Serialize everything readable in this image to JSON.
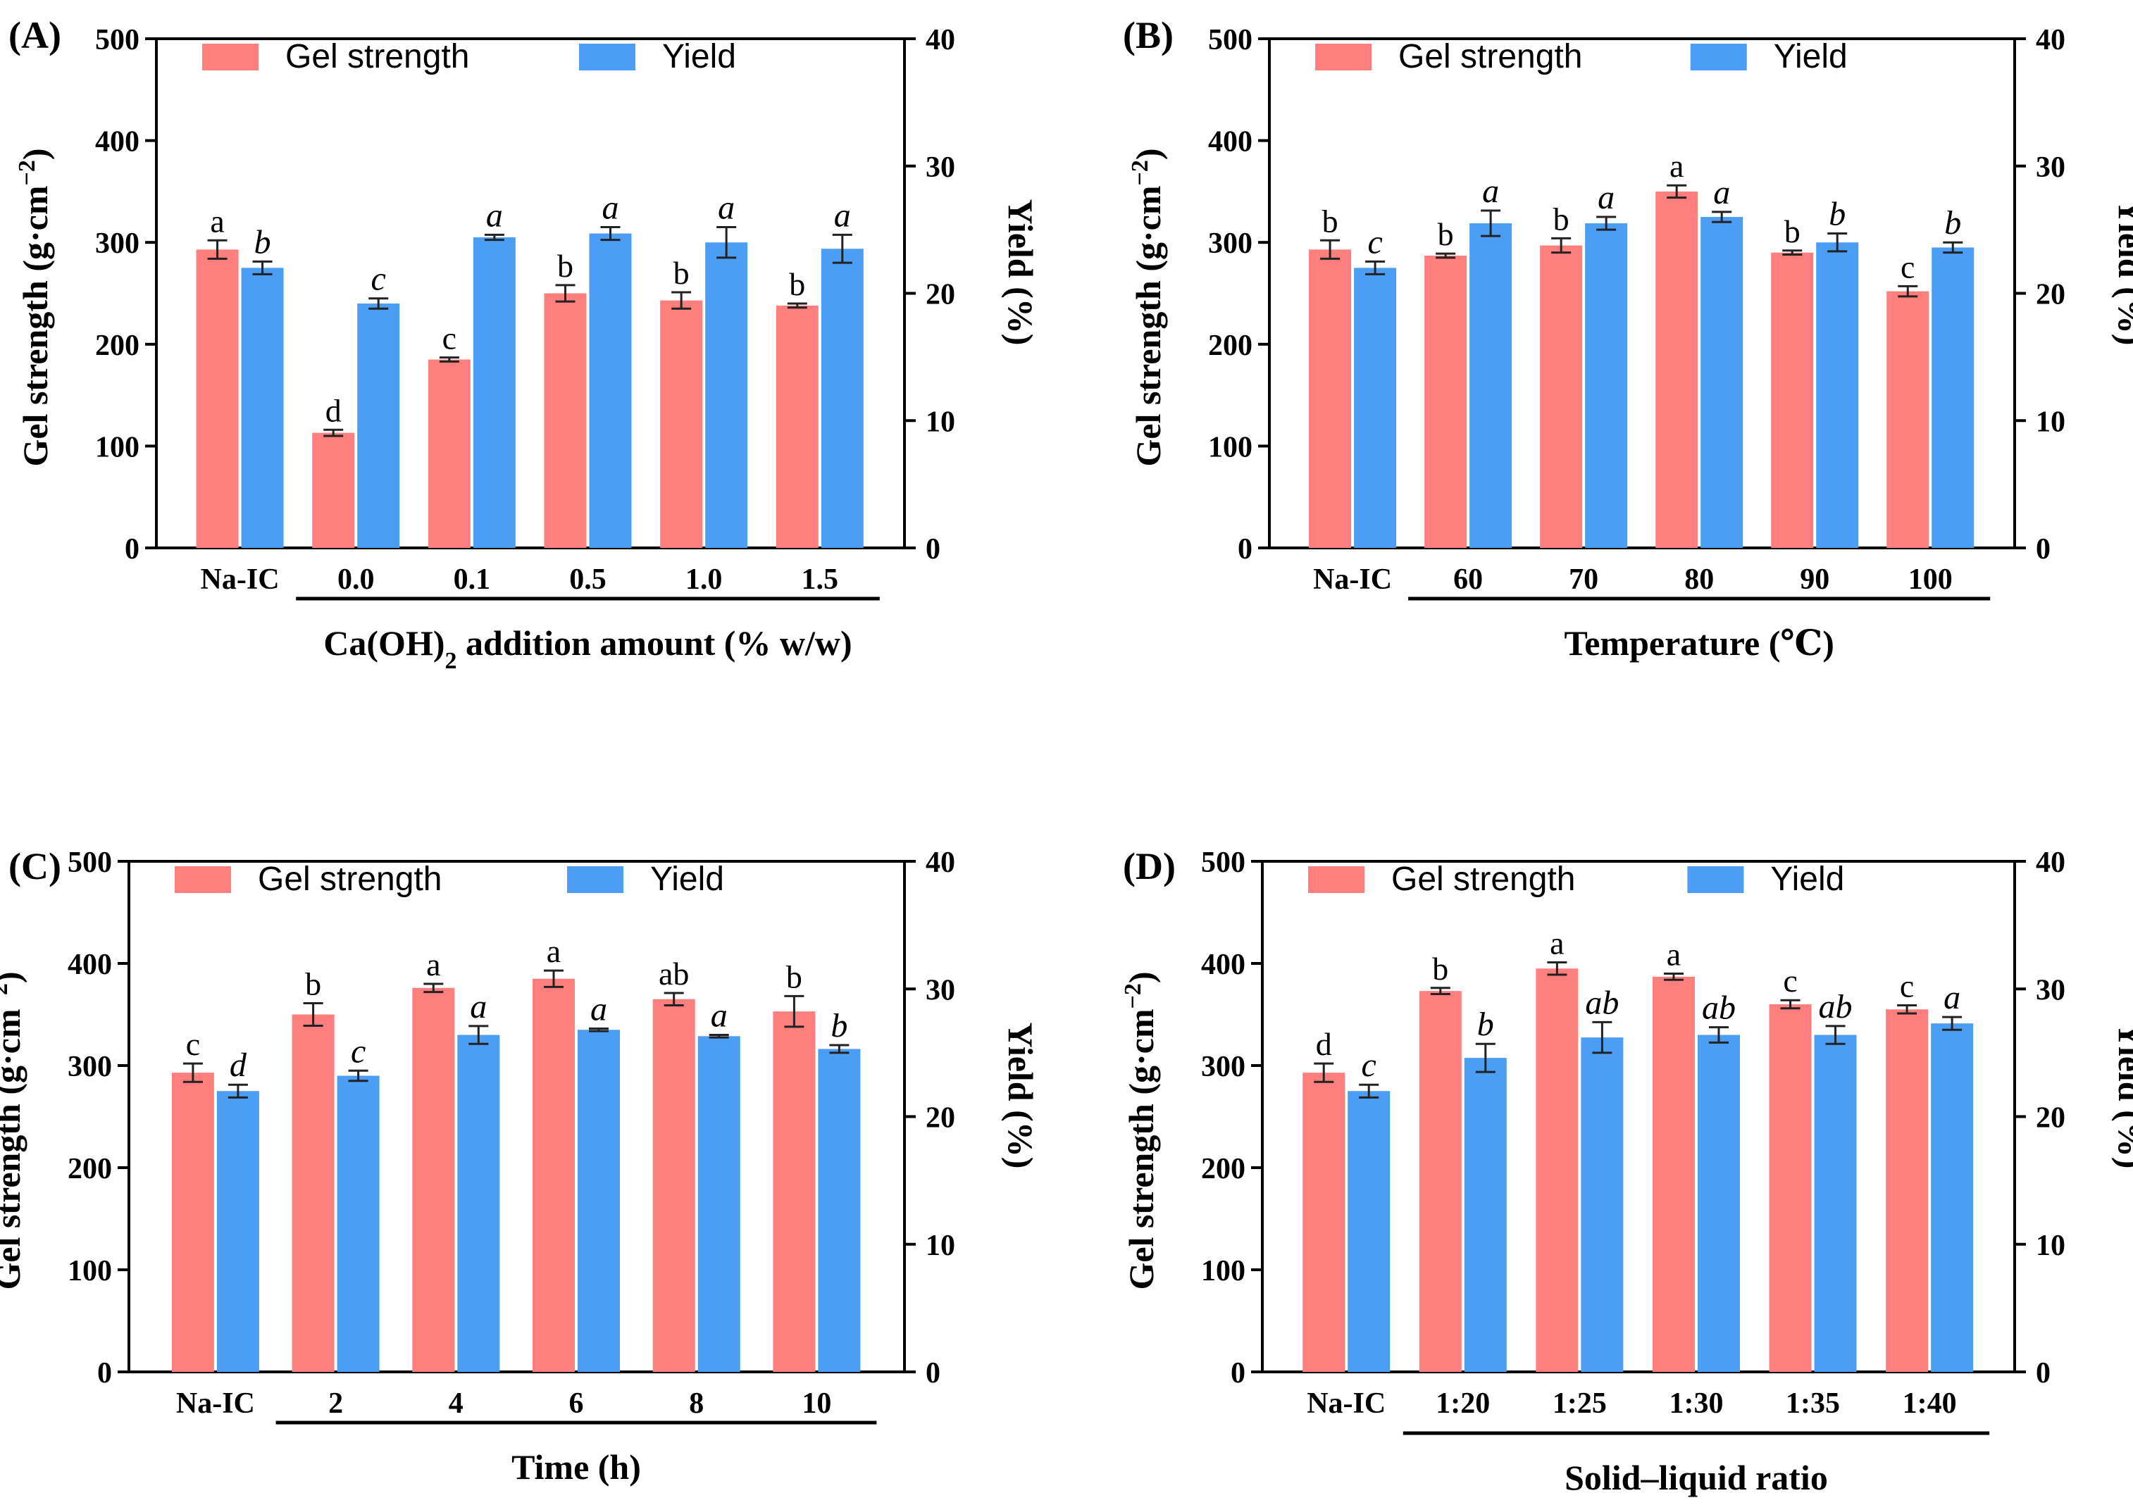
{
  "colors": {
    "gel": "#FF7F7F",
    "yield": "#4C9EF5",
    "axis": "#000000",
    "errorbar": "#222222"
  },
  "legend": {
    "gel_label": "Gel strength",
    "yield_label": "Yield"
  },
  "left_axis": {
    "label_main": "Gel strength (g·cm",
    "label_sup": "−2",
    "label_close": ")",
    "ylim": [
      0,
      500
    ],
    "ticks": [
      "0",
      "100",
      "200",
      "300",
      "400",
      "500"
    ]
  },
  "right_axis": {
    "label": "Yield (%)",
    "ylim": [
      0,
      40
    ],
    "ticks": [
      "0",
      "10",
      "20",
      "30",
      "40"
    ]
  },
  "chart_data": [
    {
      "panel_label": "(A)",
      "type": "bar",
      "categories": [
        "Na-IC",
        "0.0",
        "0.1",
        "0.5",
        "1.0",
        "1.5"
      ],
      "xlabel": "Ca(OH)",
      "xlabel_sub": "2",
      "xlabel_rest": "  addition amount (% w/w)",
      "series": [
        {
          "name": "Gel strength",
          "axis": "left",
          "values": [
            293,
            113,
            185,
            250,
            243,
            238
          ],
          "errors": [
            9,
            3,
            2,
            8,
            8,
            2
          ],
          "letters": [
            "a",
            "d",
            "c",
            "b",
            "b",
            "b"
          ]
        },
        {
          "name": "Yield",
          "axis": "right",
          "values": [
            22,
            19.2,
            24.4,
            24.7,
            24.0,
            23.5
          ],
          "errors": [
            0.5,
            0.4,
            0.2,
            0.5,
            1.2,
            1.1
          ],
          "letters": [
            "b",
            "c",
            "a",
            "a",
            "a",
            "a"
          ]
        }
      ]
    },
    {
      "panel_label": "(B)",
      "type": "bar",
      "categories": [
        "Na-IC",
        "60",
        "70",
        "80",
        "90",
        "100"
      ],
      "xlabel": "Temperature (℃)",
      "xlabel_sub": "",
      "xlabel_rest": "",
      "series": [
        {
          "name": "Gel strength",
          "axis": "left",
          "values": [
            293,
            287,
            297,
            350,
            290,
            252
          ],
          "errors": [
            9,
            2,
            7,
            6,
            2,
            5
          ],
          "letters": [
            "b",
            "b",
            "b",
            "a",
            "b",
            "c"
          ]
        },
        {
          "name": "Yield",
          "axis": "right",
          "values": [
            22,
            25.5,
            25.5,
            26.0,
            24.0,
            23.6
          ],
          "errors": [
            0.5,
            1.0,
            0.5,
            0.4,
            0.7,
            0.4
          ],
          "letters": [
            "c",
            "a",
            "a",
            "a",
            "b",
            "b"
          ]
        }
      ]
    },
    {
      "panel_label": "(C)",
      "type": "bar",
      "categories": [
        "Na-IC",
        "2",
        "4",
        "6",
        "8",
        "10"
      ],
      "xlabel": "Time (h)",
      "xlabel_sub": "",
      "xlabel_rest": "",
      "series": [
        {
          "name": "Gel strength",
          "axis": "left",
          "values": [
            293,
            350,
            376,
            385,
            365,
            353
          ],
          "errors": [
            9,
            11,
            4,
            8,
            6,
            15
          ],
          "letters": [
            "c",
            "b",
            "a",
            "a",
            "ab",
            "b"
          ]
        },
        {
          "name": "Yield",
          "axis": "right",
          "values": [
            22,
            23.2,
            26.4,
            26.8,
            26.3,
            25.3
          ],
          "errors": [
            0.5,
            0.4,
            0.7,
            0.1,
            0.1,
            0.3
          ],
          "letters": [
            "d",
            "c",
            "a",
            "a",
            "a",
            "b"
          ]
        }
      ]
    },
    {
      "panel_label": "(D)",
      "type": "bar",
      "categories": [
        "Na-IC",
        "1:20",
        "1:25",
        "1:30",
        "1:35",
        "1:40"
      ],
      "xlabel": "Solid–liquid ratio",
      "xlabel_sub": "",
      "xlabel_rest": "",
      "series": [
        {
          "name": "Gel strength",
          "axis": "left",
          "values": [
            293,
            373,
            395,
            387,
            360,
            355
          ],
          "errors": [
            9,
            3,
            6,
            3,
            4,
            4
          ],
          "letters": [
            "d",
            "b",
            "a",
            "a",
            "c",
            "c"
          ]
        },
        {
          "name": "Yield",
          "axis": "right",
          "values": [
            22,
            24.6,
            26.2,
            26.4,
            26.4,
            27.3
          ],
          "errors": [
            0.5,
            1.1,
            1.2,
            0.6,
            0.7,
            0.5
          ],
          "letters": [
            "c",
            "b",
            "ab",
            "ab",
            "ab",
            "a"
          ]
        }
      ]
    }
  ]
}
